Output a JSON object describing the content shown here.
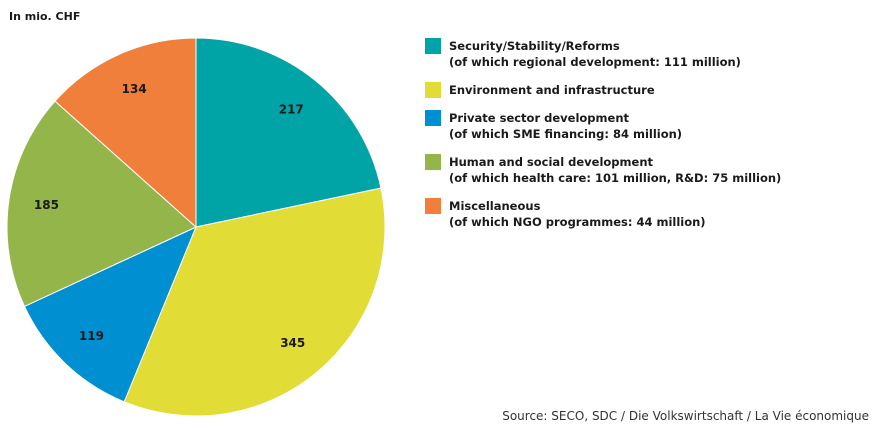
{
  "unit_label": "In mio. CHF",
  "source": "Source: SECO, SDC / Die Volkswirtschaft / La Vie économique",
  "chart_data": {
    "type": "pie",
    "title": "",
    "unit": "In mio. CHF",
    "legend_position": "right",
    "slices": [
      {
        "value": 217,
        "label": "217",
        "color": "#00a3a6",
        "legend": "Security/Stability/Reforms",
        "legend_sub": "(of which regional development: 111 million)"
      },
      {
        "value": 345,
        "label": "345",
        "color": "#e2dc36",
        "legend": "Environment and infrastructure",
        "legend_sub": ""
      },
      {
        "value": 119,
        "label": "119",
        "color": "#0090d2",
        "legend": "Private sector development",
        "legend_sub": "(of which SME financing: 84 million)"
      },
      {
        "value": 185,
        "label": "185",
        "color": "#94b54a",
        "legend": "Human and social development",
        "legend_sub": "(of which health care: 101 million, R&D: 75 million)"
      },
      {
        "value": 134,
        "label": "134",
        "color": "#ef7f3a",
        "legend": "Miscellaneous",
        "legend_sub": "(of which NGO programmes: 44 million)"
      }
    ]
  }
}
